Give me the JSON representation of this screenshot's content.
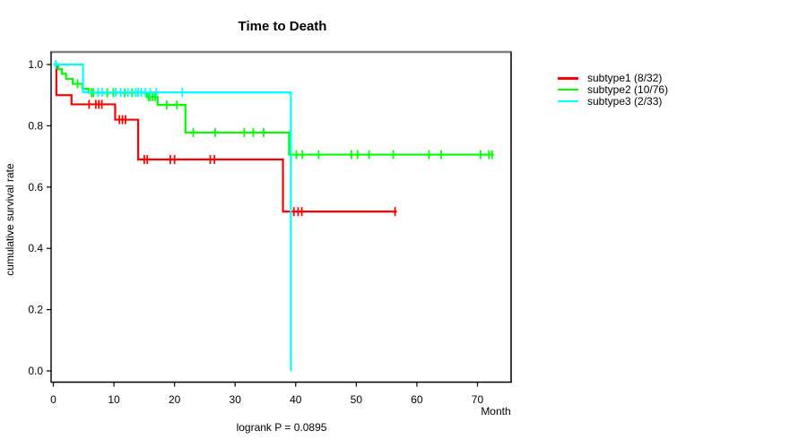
{
  "chart_data": {
    "type": "line",
    "subtype": "kaplan-meier-survival-steps",
    "title": "Time to Death",
    "xlabel": "Month",
    "ylabel": "cumulative survival rate",
    "annotation": "logrank P = 0.0895",
    "xlim": [
      0,
      75.5
    ],
    "ylim": [
      0,
      1.04
    ],
    "grid": false,
    "legend_position": "right",
    "x_ticks": [
      0,
      10,
      20,
      30,
      40,
      50,
      60,
      70
    ],
    "y_ticks": [
      0.0,
      0.2,
      0.4,
      0.6,
      0.8,
      1.0
    ],
    "series": [
      {
        "name": "subtype1 (8/32)",
        "color": "#FF0000",
        "steps": [
          [
            0,
            1.0
          ],
          [
            0.5,
            0.9
          ],
          [
            3.0,
            0.87
          ],
          [
            10.2,
            0.82
          ],
          [
            14.0,
            0.69
          ],
          [
            37.9,
            0.52
          ]
        ],
        "end_month": 56.7,
        "censor_marks": [
          [
            5.9,
            0.87
          ],
          [
            7.0,
            0.87
          ],
          [
            7.5,
            0.87
          ],
          [
            8.0,
            0.87
          ],
          [
            10.9,
            0.82
          ],
          [
            11.4,
            0.82
          ],
          [
            11.9,
            0.82
          ],
          [
            15.0,
            0.69
          ],
          [
            15.5,
            0.69
          ],
          [
            19.3,
            0.69
          ],
          [
            20.0,
            0.69
          ],
          [
            25.9,
            0.69
          ],
          [
            26.6,
            0.69
          ],
          [
            39.7,
            0.52
          ],
          [
            40.4,
            0.52
          ],
          [
            41.0,
            0.52
          ],
          [
            56.4,
            0.52
          ]
        ]
      },
      {
        "name": "subtype2 (10/76)",
        "color": "#00FF00",
        "steps": [
          [
            0,
            1.0
          ],
          [
            0.8,
            0.985
          ],
          [
            1.4,
            0.97
          ],
          [
            2.1,
            0.953
          ],
          [
            3.2,
            0.937
          ],
          [
            4.8,
            0.921
          ],
          [
            5.8,
            0.908
          ],
          [
            15.4,
            0.895
          ],
          [
            17.2,
            0.868
          ],
          [
            21.8,
            0.778
          ],
          [
            38.9,
            0.706
          ]
        ],
        "end_month": 72.7,
        "censor_marks": [
          [
            4.0,
            0.937
          ],
          [
            6.3,
            0.908
          ],
          [
            6.6,
            0.908
          ],
          [
            8.9,
            0.908
          ],
          [
            9.9,
            0.908
          ],
          [
            11.8,
            0.908
          ],
          [
            13.0,
            0.908
          ],
          [
            15.7,
            0.895
          ],
          [
            16.0,
            0.895
          ],
          [
            16.4,
            0.895
          ],
          [
            16.8,
            0.895
          ],
          [
            18.7,
            0.868
          ],
          [
            20.4,
            0.868
          ],
          [
            23.1,
            0.778
          ],
          [
            26.7,
            0.778
          ],
          [
            31.5,
            0.778
          ],
          [
            33.0,
            0.778
          ],
          [
            34.7,
            0.778
          ],
          [
            40.1,
            0.706
          ],
          [
            41.1,
            0.706
          ],
          [
            43.8,
            0.706
          ],
          [
            49.2,
            0.706
          ],
          [
            50.2,
            0.706
          ],
          [
            52.1,
            0.706
          ],
          [
            56.1,
            0.706
          ],
          [
            62.0,
            0.706
          ],
          [
            64.0,
            0.706
          ],
          [
            70.5,
            0.706
          ],
          [
            71.9,
            0.706
          ],
          [
            72.4,
            0.706
          ]
        ]
      },
      {
        "name": "subtype3 (2/33)",
        "color": "#00FFFF",
        "steps": [
          [
            0,
            1.0
          ],
          [
            4.9,
            0.909
          ],
          [
            39.2,
            0.0
          ]
        ],
        "end_month": 39.2,
        "censor_marks": [
          [
            0.4,
            1.0
          ],
          [
            7.4,
            0.909
          ],
          [
            8.1,
            0.909
          ],
          [
            10.3,
            0.909
          ],
          [
            11.1,
            0.909
          ],
          [
            12.3,
            0.909
          ],
          [
            13.6,
            0.909
          ],
          [
            14.0,
            0.909
          ],
          [
            14.5,
            0.909
          ],
          [
            15.2,
            0.909
          ],
          [
            16.0,
            0.909
          ],
          [
            17.0,
            0.909
          ],
          [
            21.3,
            0.909
          ]
        ]
      }
    ],
    "colors": {
      "box_top_border": "#808080",
      "box_side_border": "#3c3c3c",
      "axis": "#000000",
      "text": "#000000"
    }
  }
}
